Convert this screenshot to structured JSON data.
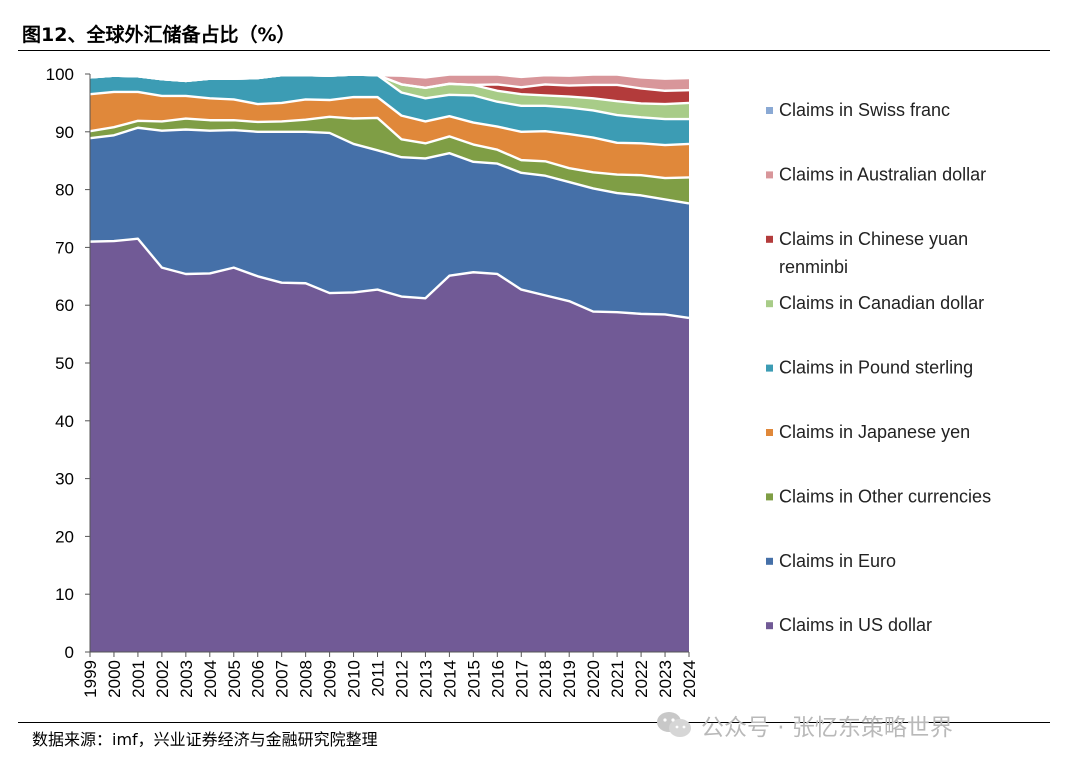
{
  "title": "图12、全球外汇储备占比（%）",
  "source": "数据来源：imf，兴业证券经济与金融研究院整理",
  "watermark": "公众号 · 张忆东策略世界",
  "chart_data": {
    "type": "area",
    "stacked": true,
    "x": [
      "1999",
      "2000",
      "2001",
      "2002",
      "2003",
      "2004",
      "2005",
      "2006",
      "2007",
      "2008",
      "2009",
      "2010",
      "2011",
      "2012",
      "2013",
      "2014",
      "2015",
      "2016",
      "2017",
      "2018",
      "2019",
      "2020",
      "2021",
      "2022",
      "2023",
      "2024"
    ],
    "ylim": [
      0,
      100
    ],
    "yticks": [
      0,
      10,
      20,
      30,
      40,
      50,
      60,
      70,
      80,
      90,
      100
    ],
    "legend_position": "right",
    "series": [
      {
        "name": "Claims in US dollar",
        "color": "#715a96",
        "values": [
          71.0,
          71.1,
          71.5,
          66.5,
          65.4,
          65.5,
          66.5,
          65.0,
          63.9,
          63.8,
          62.1,
          62.2,
          62.7,
          61.5,
          61.2,
          65.1,
          65.7,
          65.4,
          62.7,
          61.7,
          60.7,
          58.9,
          58.8,
          58.5,
          58.4,
          57.8
        ]
      },
      {
        "name": "Claims in Euro",
        "color": "#4570a8",
        "values": [
          17.9,
          18.3,
          19.2,
          23.7,
          25.0,
          24.7,
          23.8,
          25.0,
          26.1,
          26.2,
          27.7,
          25.7,
          24.1,
          24.1,
          24.2,
          21.2,
          19.1,
          19.1,
          20.2,
          20.7,
          20.6,
          21.3,
          20.6,
          20.5,
          19.9,
          19.8
        ]
      },
      {
        "name": "Claims in Other currencies",
        "color": "#7f9e45",
        "values": [
          1.2,
          1.4,
          1.2,
          1.6,
          1.9,
          1.8,
          1.7,
          1.7,
          1.8,
          2.1,
          2.8,
          4.4,
          5.6,
          3.1,
          2.6,
          2.9,
          3.0,
          2.4,
          2.2,
          2.5,
          2.4,
          2.8,
          3.2,
          3.5,
          3.7,
          4.5
        ]
      },
      {
        "name": "Claims in Japanese yen",
        "color": "#e0883a",
        "values": [
          6.4,
          6.1,
          5.0,
          4.4,
          3.9,
          3.8,
          3.6,
          3.1,
          3.2,
          3.5,
          2.9,
          3.7,
          3.6,
          4.1,
          3.8,
          3.5,
          3.8,
          4.0,
          4.9,
          5.2,
          5.9,
          6.0,
          5.5,
          5.5,
          5.7,
          5.8
        ]
      },
      {
        "name": "Claims in Pound sterling",
        "color": "#3c9cb4",
        "values": [
          2.9,
          2.8,
          2.7,
          2.9,
          2.6,
          3.4,
          3.6,
          4.5,
          4.8,
          4.2,
          4.2,
          3.9,
          3.8,
          4.0,
          4.0,
          3.7,
          4.7,
          4.3,
          4.5,
          4.4,
          4.6,
          4.7,
          4.8,
          4.5,
          4.5,
          4.3
        ]
      },
      {
        "name": "Claims in Canadian dollar",
        "color": "#a8cc88",
        "values": [
          0,
          0,
          0,
          0,
          0,
          0,
          0,
          0,
          0,
          0,
          0,
          0,
          0,
          1.4,
          1.8,
          1.9,
          1.8,
          1.9,
          2.0,
          1.8,
          1.9,
          2.1,
          2.4,
          2.4,
          2.6,
          2.8
        ]
      },
      {
        "name": "Claims in Chinese yuan renminbi",
        "color": "#b33b3b",
        "values": [
          0,
          0,
          0,
          0,
          0,
          0,
          0,
          0,
          0,
          0,
          0,
          0,
          0,
          0,
          0,
          0,
          0,
          1.1,
          1.2,
          1.9,
          1.9,
          2.3,
          2.8,
          2.6,
          2.3,
          2.2
        ]
      },
      {
        "name": "Claims in Australian dollar",
        "color": "#d8969a",
        "values": [
          0,
          0,
          0,
          0,
          0,
          0,
          0,
          0,
          0,
          0,
          0,
          0,
          0,
          1.5,
          1.8,
          1.6,
          1.8,
          1.7,
          1.8,
          1.6,
          1.7,
          1.8,
          1.8,
          1.9,
          2.1,
          2.1
        ]
      },
      {
        "name": "Claims in Swiss franc",
        "color": "#8aa9d4",
        "values": [
          0.3,
          0.3,
          0.3,
          0.4,
          0.2,
          0.2,
          0.2,
          0.2,
          0.2,
          0.1,
          0.1,
          0.1,
          0.1,
          0.2,
          0.3,
          0.3,
          0.3,
          0.2,
          0.2,
          0.2,
          0.2,
          0.2,
          0.2,
          0.2,
          0.2,
          0.2
        ]
      }
    ],
    "legend_order": [
      "Claims in Swiss franc",
      "Claims in Australian dollar",
      "Claims in Chinese yuan renminbi",
      "Claims in Canadian dollar",
      "Claims in Pound sterling",
      "Claims in Japanese yen",
      "Claims in Other currencies",
      "Claims in Euro",
      "Claims in US dollar"
    ]
  }
}
